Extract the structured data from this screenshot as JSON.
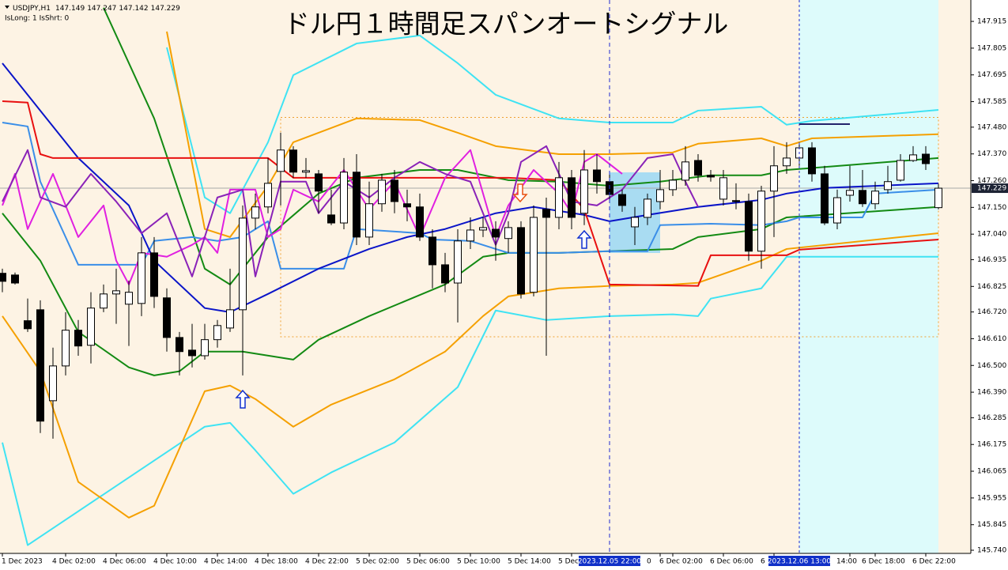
{
  "chart_data": {
    "type": "candlestick",
    "title": "ドル円１時間足スパンオートシグナル",
    "symbol": "USDJPY,H1",
    "header_ohlc": [
      147.149,
      147.247,
      147.142,
      147.229
    ],
    "status_text": "IsLong: 1 IsShrt: 0",
    "ylim": [
      145.727,
      148.003
    ],
    "yticks": [
      147.915,
      147.805,
      147.695,
      147.585,
      {
        "value": 147.48,
        "label": "147.480"
      },
      {
        "value": 147.37,
        "label": "147.370"
      },
      {
        "value": 147.26,
        "label": "147.260"
      },
      {
        "value": 147.15,
        "label": "147.150"
      },
      {
        "value": 147.04,
        "label": "147.040"
      },
      146.935,
      146.825,
      {
        "value": 146.72,
        "label": "146.720"
      },
      {
        "value": 146.61,
        "label": "146.610"
      },
      {
        "value": 146.5,
        "label": "146.500"
      },
      {
        "value": 146.39,
        "label": "146.390"
      },
      146.285,
      146.175,
      146.065,
      145.955,
      145.845,
      {
        "value": 145.74,
        "label": "145.740"
      }
    ],
    "current_price": 147.229,
    "categories": [
      "1 Dec 2023",
      null,
      null,
      null,
      null,
      "4 Dec 02:00",
      null,
      null,
      null,
      "4 Dec 06:00",
      null,
      null,
      null,
      "4 Dec 10:00",
      null,
      null,
      null,
      "4 Dec 14:00",
      null,
      null,
      null,
      "4 Dec 18:00",
      null,
      null,
      null,
      "4 Dec 22:00",
      null,
      null,
      null,
      "5 Dec 02:00",
      null,
      null,
      null,
      "5 Dec 06:00",
      null,
      null,
      null,
      "5 Dec 10:00",
      null,
      null,
      null,
      "5 Dec 14:00",
      null,
      null,
      null,
      "5 Dec",
      null,
      null,
      null,
      null,
      null,
      null,
      "0",
      "6 Dec 02:00",
      null,
      null,
      null,
      "6 Dec 06:00",
      null,
      null,
      null,
      "6",
      null,
      null,
      null,
      null,
      null,
      "14:00",
      null,
      "6 Dec 18:00",
      null,
      null,
      null,
      "6 Dec 22:00",
      null
    ],
    "cursor_labels": [
      {
        "index": 48,
        "label": "2023.12.05 22:00"
      },
      {
        "index": 63,
        "label": "2023.12.06 13:00"
      }
    ],
    "ohlc": [
      [
        146.879,
        146.898,
        146.801,
        146.846
      ],
      [
        146.872,
        146.882,
        146.833,
        146.839
      ],
      [
        146.684,
        146.775,
        146.638,
        146.651
      ],
      [
        146.729,
        146.768,
        146.222,
        146.271
      ],
      [
        146.355,
        146.573,
        146.199,
        146.498
      ],
      [
        146.498,
        146.719,
        146.459,
        146.645
      ],
      [
        146.645,
        146.687,
        146.54,
        146.58
      ],
      [
        146.583,
        146.801,
        146.508,
        146.736
      ],
      [
        146.736,
        146.833,
        146.719,
        146.794
      ],
      [
        146.794,
        146.898,
        146.671,
        146.807
      ],
      [
        146.752,
        146.849,
        146.58,
        146.801
      ],
      [
        146.755,
        147.028,
        146.703,
        146.963
      ],
      [
        146.963,
        147.028,
        146.736,
        146.784
      ],
      [
        146.778,
        146.817,
        146.557,
        146.615
      ],
      [
        146.615,
        146.638,
        146.459,
        146.557
      ],
      [
        146.563,
        146.671,
        146.492,
        146.54
      ],
      [
        146.54,
        146.671,
        146.524,
        146.606
      ],
      [
        146.606,
        146.687,
        146.573,
        146.664
      ],
      [
        146.654,
        146.898,
        146.638,
        146.729
      ],
      [
        146.729,
        147.158,
        146.459,
        147.106
      ],
      [
        147.106,
        147.207,
        147.06,
        147.152
      ],
      [
        147.152,
        147.353,
        147.126,
        147.249
      ],
      [
        147.298,
        147.457,
        147.158,
        147.386
      ],
      [
        147.386,
        147.402,
        147.272,
        147.295
      ],
      [
        147.295,
        147.353,
        147.272,
        147.301
      ],
      [
        147.288,
        147.304,
        147.126,
        147.217
      ],
      [
        147.119,
        147.223,
        147.077,
        147.086
      ],
      [
        147.086,
        147.353,
        147.06,
        147.295
      ],
      [
        147.295,
        147.369,
        146.995,
        147.028
      ],
      [
        147.028,
        147.256,
        146.995,
        147.165
      ],
      [
        147.165,
        147.288,
        147.132,
        147.262
      ],
      [
        147.262,
        147.304,
        147.126,
        147.174
      ],
      [
        147.165,
        147.223,
        147.093,
        147.152
      ],
      [
        147.152,
        147.207,
        147.012,
        147.028
      ],
      [
        147.028,
        147.06,
        146.817,
        146.914
      ],
      [
        146.914,
        146.963,
        146.801,
        146.839
      ],
      [
        146.839,
        147.06,
        146.677,
        147.012
      ],
      [
        147.012,
        147.109,
        146.979,
        147.057
      ],
      [
        147.057,
        147.109,
        147.028,
        147.067
      ],
      [
        147.06,
        147.093,
        146.931,
        147.028
      ],
      [
        147.022,
        147.093,
        146.963,
        147.067
      ],
      [
        147.067,
        147.093,
        146.775,
        146.794
      ],
      [
        146.801,
        147.158,
        146.784,
        147.109
      ],
      [
        147.142,
        147.19,
        146.54,
        147.109
      ],
      [
        147.109,
        147.337,
        147.06,
        147.272
      ],
      [
        147.272,
        147.304,
        147.06,
        147.109
      ],
      [
        147.126,
        147.386,
        147.077,
        147.304
      ],
      [
        147.304,
        147.369,
        147.207,
        147.256
      ],
      [
        147.256,
        147.288,
        147.174,
        147.203
      ],
      [
        147.203,
        147.223,
        147.132,
        147.158
      ],
      [
        147.07,
        147.152,
        146.995,
        147.109
      ],
      [
        147.109,
        147.207,
        147.077,
        147.184
      ],
      [
        147.174,
        147.304,
        147.142,
        147.223
      ],
      [
        147.223,
        147.304,
        147.197,
        147.262
      ],
      [
        147.262,
        147.402,
        147.239,
        147.337
      ],
      [
        147.343,
        147.369,
        147.256,
        147.282
      ],
      [
        147.282,
        147.304,
        147.256,
        147.275
      ],
      [
        147.184,
        147.304,
        147.158,
        147.272
      ],
      [
        147.178,
        147.249,
        147.142,
        147.174
      ],
      [
        147.174,
        147.207,
        146.931,
        146.97
      ],
      [
        146.97,
        147.239,
        146.898,
        147.217
      ],
      [
        147.217,
        147.402,
        147.028,
        147.321
      ],
      [
        147.321,
        147.418,
        147.288,
        147.353
      ],
      [
        147.353,
        147.418,
        147.321,
        147.395
      ],
      [
        147.395,
        147.418,
        147.256,
        147.288
      ],
      [
        147.288,
        147.321,
        147.077,
        147.086
      ],
      [
        147.086,
        147.223,
        147.06,
        147.19
      ],
      [
        147.2,
        147.321,
        147.174,
        147.22
      ],
      [
        147.22,
        147.304,
        147.152,
        147.165
      ],
      [
        147.165,
        147.256,
        147.142,
        147.217
      ],
      [
        147.223,
        147.321,
        147.207,
        147.256
      ],
      [
        147.262,
        147.369,
        147.256,
        147.343
      ],
      [
        147.343,
        147.402,
        147.337,
        147.366
      ],
      [
        147.369,
        147.402,
        147.304,
        147.33
      ],
      [
        147.149,
        147.247,
        147.142,
        147.229
      ]
    ],
    "lines": [
      {
        "color": "#3fe3f3",
        "x": [
          13,
          16,
          18,
          21,
          23,
          28,
          33,
          36,
          39,
          44,
          48,
          53,
          55,
          60,
          62,
          64,
          74
        ],
        "values": [
          147.808,
          147.191,
          147.126,
          147.418,
          147.694,
          147.824,
          147.857,
          147.743,
          147.613,
          147.516,
          147.499,
          147.499,
          147.548,
          147.564,
          147.49,
          147.506,
          147.551
        ]
      },
      {
        "color": "#3fe3f3",
        "x": [
          0,
          2,
          16,
          18,
          20,
          23,
          26,
          31,
          36,
          39,
          43,
          48,
          53,
          55,
          56,
          60,
          62,
          74
        ],
        "values": [
          146.183,
          145.761,
          146.248,
          146.264,
          146.151,
          145.972,
          146.06,
          146.183,
          146.411,
          146.726,
          146.687,
          146.703,
          146.71,
          146.703,
          146.775,
          146.817,
          146.947,
          146.947
        ]
      },
      {
        "color": "#f5a000",
        "x": [
          13,
          16,
          18,
          21,
          23,
          28,
          33,
          36,
          39,
          44,
          48,
          53,
          55,
          60,
          62,
          64,
          74
        ],
        "values": [
          147.873,
          147.061,
          147.028,
          147.239,
          147.418,
          147.516,
          147.509,
          147.457,
          147.402,
          147.369,
          147.369,
          147.376,
          147.412,
          147.434,
          147.402,
          147.434,
          147.451
        ]
      },
      {
        "color": "#f5a000",
        "x": [
          0,
          3,
          6,
          10,
          12,
          16,
          18,
          20,
          23,
          26,
          31,
          35,
          38,
          40,
          44,
          48,
          53,
          55,
          60,
          62,
          74
        ],
        "values": [
          146.703,
          146.476,
          146.021,
          145.874,
          145.923,
          146.394,
          146.417,
          146.362,
          146.248,
          146.339,
          146.443,
          146.557,
          146.703,
          146.784,
          146.817,
          146.827,
          146.833,
          146.84,
          146.931,
          146.979,
          147.044
        ]
      },
      {
        "color": "#138a13",
        "x": [
          8,
          12,
          16,
          18,
          21,
          25,
          28,
          33,
          36,
          40,
          44,
          48,
          52,
          56,
          60,
          62,
          74
        ],
        "values": [
          147.971,
          147.516,
          146.898,
          146.833,
          147.028,
          147.207,
          147.272,
          147.304,
          147.304,
          147.262,
          147.256,
          147.239,
          147.256,
          147.282,
          147.282,
          147.304,
          147.353
        ]
      },
      {
        "color": "#138a13",
        "x": [
          0,
          3,
          6,
          10,
          12,
          14,
          16,
          19,
          23,
          25,
          29,
          35,
          38,
          40,
          44,
          48,
          53,
          55,
          60,
          62,
          74
        ],
        "values": [
          147.126,
          146.931,
          146.638,
          146.492,
          146.459,
          146.476,
          146.557,
          146.557,
          146.524,
          146.606,
          146.703,
          146.833,
          146.947,
          146.963,
          146.963,
          146.97,
          146.979,
          147.028,
          147.061,
          147.109,
          147.152
        ]
      },
      {
        "color": "#3a8ee8",
        "x": [
          0,
          2,
          3,
          5,
          6,
          11,
          12,
          15,
          17,
          19,
          21,
          22,
          27,
          28,
          33,
          34,
          37,
          39,
          40,
          44,
          48,
          51,
          52,
          56,
          60,
          62,
          63,
          68,
          69,
          74
        ],
        "values": [
          147.499,
          147.483,
          147.256,
          147.028,
          146.914,
          146.914,
          147.012,
          147.028,
          147.012,
          147.028,
          147.093,
          146.898,
          146.898,
          147.061,
          147.044,
          147.018,
          147.012,
          146.979,
          146.963,
          146.963,
          146.97,
          146.97,
          147.077,
          147.083,
          147.077,
          147.093,
          147.109,
          147.109,
          147.207,
          147.223
        ]
      },
      {
        "color": "#0a14c8",
        "x": [
          0,
          3,
          6,
          10,
          12,
          16,
          18,
          21,
          25,
          29,
          32,
          35,
          39,
          42,
          46,
          48,
          51,
          55,
          60,
          62,
          65,
          74
        ],
        "values": [
          147.743,
          147.548,
          147.353,
          147.158,
          146.931,
          146.736,
          146.719,
          146.794,
          146.898,
          146.979,
          147.028,
          147.061,
          147.126,
          147.152,
          147.119,
          147.093,
          147.119,
          147.152,
          147.181,
          147.207,
          147.23,
          147.249
        ]
      },
      {
        "color": "#e81010",
        "x": [
          0,
          2,
          3,
          4,
          21,
          23,
          40,
          44,
          46,
          48,
          55,
          56,
          62,
          63,
          74
        ],
        "values": [
          147.587,
          147.581,
          147.369,
          147.353,
          147.353,
          147.272,
          147.272,
          147.262,
          147.142,
          146.833,
          146.827,
          146.953,
          146.953,
          146.976,
          147.018
        ]
      },
      {
        "color": "#e020e0",
        "x": [
          0,
          1,
          2,
          4,
          6,
          8,
          9,
          10,
          11,
          13,
          15,
          16,
          17,
          18,
          20,
          21,
          22,
          23,
          25,
          27,
          29,
          31,
          33,
          35,
          37,
          39,
          40,
          42,
          44,
          45,
          46,
          47,
          49
        ],
        "values": [
          147.158,
          147.288,
          147.061,
          147.288,
          147.028,
          147.158,
          146.931,
          146.833,
          146.963,
          146.947,
          146.996,
          147.028,
          146.963,
          147.223,
          147.223,
          147.028,
          147.061,
          147.223,
          147.174,
          147.304,
          147.142,
          147.256,
          147.028,
          147.272,
          147.386,
          147.028,
          147.158,
          147.304,
          147.207,
          147.126,
          147.337,
          147.369,
          147.288
        ]
      },
      {
        "color": "#8a22b8",
        "x": [
          0,
          2,
          3,
          5,
          7,
          9,
          11,
          13,
          15,
          17,
          19,
          20,
          22,
          24,
          25,
          27,
          29,
          31,
          33,
          35,
          37,
          39,
          40,
          41,
          43,
          45,
          47,
          49,
          51,
          53,
          54,
          55
        ],
        "values": [
          147.174,
          147.386,
          147.191,
          147.152,
          147.288,
          147.174,
          147.044,
          147.126,
          146.866,
          147.191,
          147.223,
          146.866,
          147.256,
          147.256,
          147.126,
          147.256,
          147.191,
          147.272,
          147.337,
          147.288,
          147.256,
          146.996,
          147.126,
          147.337,
          147.402,
          147.174,
          147.158,
          147.223,
          147.353,
          147.369,
          147.256,
          147.152
        ]
      }
    ],
    "range_box": {
      "x": [
        22,
        74
      ],
      "high": 147.52,
      "low": 146.618
    }
  }
}
